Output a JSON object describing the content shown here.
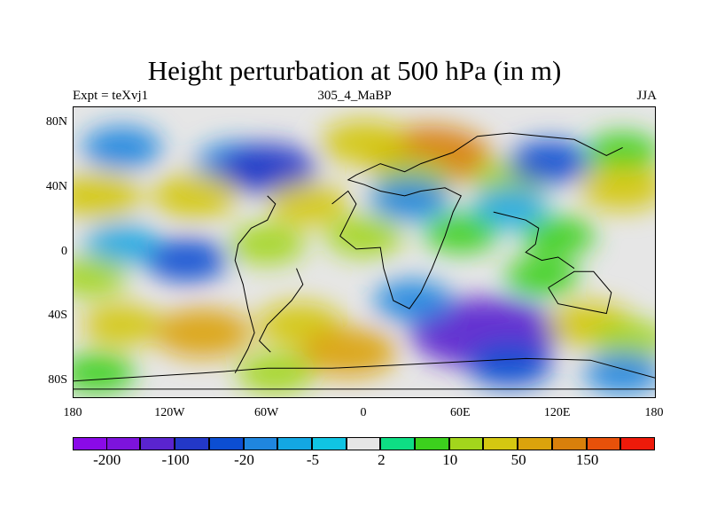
{
  "title": "Height perturbation at 500 hPa (in m)",
  "left_label": "Expt = teXvj1",
  "center_label": "305_4_MaBP",
  "right_label": "JJA",
  "map_extent": {
    "lon": [
      -180,
      180
    ],
    "lat": [
      -90,
      90
    ]
  },
  "y_ticks": [
    {
      "label": "80N",
      "lat": 80
    },
    {
      "label": "40N",
      "lat": 40
    },
    {
      "label": "0",
      "lat": 0
    },
    {
      "label": "40S",
      "lat": -40
    },
    {
      "label": "80S",
      "lat": -80
    }
  ],
  "x_ticks": [
    {
      "label": "180",
      "lon": -180
    },
    {
      "label": "120W",
      "lon": -120
    },
    {
      "label": "60W",
      "lon": -60
    },
    {
      "label": "0",
      "lon": 0
    },
    {
      "label": "60E",
      "lon": 60
    },
    {
      "label": "120E",
      "lon": 120
    },
    {
      "label": "180",
      "lon": 180
    }
  ],
  "colorbar": {
    "colors": [
      "#8a0ae8",
      "#7d13dc",
      "#5a24cf",
      "#2338c8",
      "#0c4ed2",
      "#1f86df",
      "#13a7e3",
      "#10c4e3",
      "#e6e6e6",
      "#0ede84",
      "#3cd11d",
      "#a3d61c",
      "#d4c811",
      "#dba30c",
      "#d9800b",
      "#e8510a",
      "#ee1a0a"
    ],
    "labels": [
      {
        "text": "-200",
        "boundary": 1
      },
      {
        "text": "-100",
        "boundary": 3
      },
      {
        "text": "-20",
        "boundary": 5
      },
      {
        "text": "-5",
        "boundary": 7
      },
      {
        "text": "2",
        "boundary": 9
      },
      {
        "text": "10",
        "boundary": 11
      },
      {
        "text": "50",
        "boundary": 13
      },
      {
        "text": "150",
        "boundary": 15
      }
    ]
  },
  "field_features": [
    {
      "lon": -150,
      "lat": 65,
      "value": -20
    },
    {
      "lon": -80,
      "lat": 55,
      "value": -20
    },
    {
      "lon": -60,
      "lat": 52,
      "value": -60
    },
    {
      "lon": 40,
      "lat": 60,
      "value": 120
    },
    {
      "lon": 0,
      "lat": 68,
      "value": 35
    },
    {
      "lon": 30,
      "lat": 45,
      "value": 15
    },
    {
      "lon": 90,
      "lat": 45,
      "value": 12
    },
    {
      "lon": 115,
      "lat": 56,
      "value": -25
    },
    {
      "lon": 160,
      "lat": 62,
      "value": 8
    },
    {
      "lon": 160,
      "lat": 40,
      "value": 35
    },
    {
      "lon": 90,
      "lat": 28,
      "value": -8
    },
    {
      "lon": 28,
      "lat": 33,
      "value": -20
    },
    {
      "lon": -165,
      "lat": 35,
      "value": 40
    },
    {
      "lon": -105,
      "lat": 35,
      "value": 35
    },
    {
      "lon": -35,
      "lat": 30,
      "value": 20
    },
    {
      "lon": -150,
      "lat": 5,
      "value": -8
    },
    {
      "lon": -110,
      "lat": -5,
      "value": -25
    },
    {
      "lon": -60,
      "lat": 5,
      "value": 12
    },
    {
      "lon": 0,
      "lat": 10,
      "value": 15
    },
    {
      "lon": 60,
      "lat": 12,
      "value": 8
    },
    {
      "lon": 120,
      "lat": 10,
      "value": 6
    },
    {
      "lon": -170,
      "lat": -15,
      "value": 10
    },
    {
      "lon": 110,
      "lat": -15,
      "value": 6
    },
    {
      "lon": -150,
      "lat": -45,
      "value": 20
    },
    {
      "lon": -100,
      "lat": -50,
      "value": 60
    },
    {
      "lon": -40,
      "lat": -45,
      "value": 35
    },
    {
      "lon": -10,
      "lat": -62,
      "value": 60
    },
    {
      "lon": -55,
      "lat": -75,
      "value": 15
    },
    {
      "lon": 75,
      "lat": -50,
      "value": -180
    },
    {
      "lon": 30,
      "lat": -30,
      "value": -15
    },
    {
      "lon": 90,
      "lat": -70,
      "value": -30
    },
    {
      "lon": 140,
      "lat": -45,
      "value": 35
    },
    {
      "lon": 165,
      "lat": -55,
      "value": 15
    },
    {
      "lon": 160,
      "lat": -75,
      "value": -15
    },
    {
      "lon": -165,
      "lat": -75,
      "value": 8
    }
  ],
  "coastlines": [
    [
      [
        -60,
        35
      ],
      [
        -55,
        30
      ],
      [
        -60,
        20
      ],
      [
        -70,
        15
      ],
      [
        -78,
        5
      ],
      [
        -80,
        -5
      ],
      [
        -75,
        -20
      ],
      [
        -72,
        -35
      ],
      [
        -68,
        -50
      ],
      [
        -72,
        -60
      ],
      [
        -80,
        -75
      ]
    ],
    [
      [
        -42,
        -10
      ],
      [
        -38,
        -20
      ],
      [
        -45,
        -30
      ],
      [
        -60,
        -45
      ],
      [
        -65,
        -55
      ],
      [
        -58,
        -62
      ]
    ],
    [
      [
        -20,
        30
      ],
      [
        -10,
        38
      ],
      [
        -5,
        30
      ],
      [
        -10,
        20
      ],
      [
        -15,
        10
      ],
      [
        -5,
        2
      ],
      [
        10,
        3
      ],
      [
        12,
        -10
      ],
      [
        18,
        -30
      ],
      [
        28,
        -35
      ],
      [
        35,
        -25
      ],
      [
        42,
        -10
      ],
      [
        50,
        10
      ],
      [
        55,
        25
      ],
      [
        60,
        35
      ],
      [
        50,
        40
      ],
      [
        35,
        38
      ],
      [
        25,
        35
      ],
      [
        10,
        38
      ],
      [
        0,
        42
      ],
      [
        -10,
        45
      ],
      [
        -5,
        48
      ],
      [
        10,
        55
      ],
      [
        25,
        50
      ],
      [
        35,
        55
      ],
      [
        55,
        62
      ],
      [
        70,
        72
      ],
      [
        90,
        74
      ],
      [
        110,
        72
      ],
      [
        130,
        70
      ],
      [
        150,
        60
      ],
      [
        160,
        65
      ]
    ],
    [
      [
        80,
        25
      ],
      [
        100,
        20
      ],
      [
        108,
        15
      ],
      [
        106,
        5
      ],
      [
        100,
        0
      ],
      [
        110,
        -5
      ],
      [
        120,
        -3
      ],
      [
        130,
        -10
      ]
    ],
    [
      [
        114,
        -22
      ],
      [
        120,
        -32
      ],
      [
        135,
        -35
      ],
      [
        150,
        -38
      ],
      [
        153,
        -25
      ],
      [
        142,
        -12
      ],
      [
        130,
        -12
      ],
      [
        114,
        -22
      ]
    ],
    [
      [
        -180,
        -80
      ],
      [
        -150,
        -78
      ],
      [
        -100,
        -75
      ],
      [
        -60,
        -72
      ],
      [
        -20,
        -72
      ],
      [
        20,
        -70
      ],
      [
        60,
        -68
      ],
      [
        100,
        -66
      ],
      [
        140,
        -67
      ],
      [
        180,
        -78
      ]
    ],
    [
      [
        -180,
        -85
      ],
      [
        180,
        -85
      ]
    ]
  ]
}
